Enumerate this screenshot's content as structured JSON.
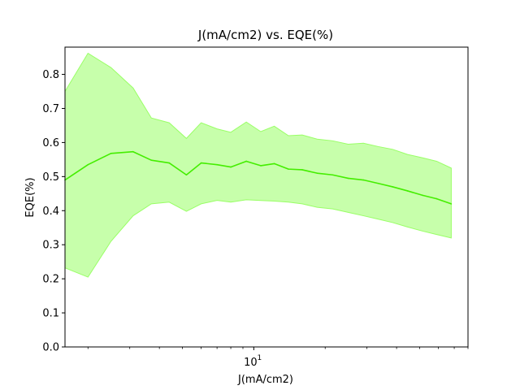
{
  "chart_data": {
    "type": "line",
    "title": "J(mA/cm2) vs. EQE(%)",
    "xlabel": "J(mA/cm2)",
    "ylabel": "EQE(%)",
    "x_scale": "log",
    "xlim": [
      1.6,
      80
    ],
    "ylim": [
      0,
      0.88
    ],
    "grid": false,
    "legend": "none",
    "x_tick_labels": [
      {
        "value": 10,
        "base": "10",
        "exp": "1"
      }
    ],
    "y_ticks": [
      "0.0",
      "0.1",
      "0.2",
      "0.3",
      "0.4",
      "0.5",
      "0.6",
      "0.7",
      "0.8"
    ],
    "series": [
      {
        "line_color": "#44ee00",
        "band_color": "#99ff66",
        "x": [
          1.6,
          2.0,
          2.5,
          3.1,
          3.7,
          4.4,
          5.2,
          6.0,
          7.0,
          8.0,
          9.3,
          10.7,
          12.2,
          14.0,
          16.0,
          18.5,
          21.5,
          25.0,
          29.0,
          33.5,
          38.5,
          44.5,
          51.5,
          59.0,
          68.0
        ],
        "y": [
          0.49,
          0.535,
          0.568,
          0.573,
          0.548,
          0.54,
          0.505,
          0.54,
          0.535,
          0.528,
          0.545,
          0.532,
          0.538,
          0.522,
          0.52,
          0.51,
          0.505,
          0.495,
          0.49,
          0.48,
          0.47,
          0.458,
          0.445,
          0.435,
          0.42
        ],
        "upper": [
          0.75,
          0.862,
          0.82,
          0.76,
          0.672,
          0.658,
          0.612,
          0.658,
          0.64,
          0.63,
          0.66,
          0.632,
          0.648,
          0.62,
          0.622,
          0.61,
          0.605,
          0.595,
          0.598,
          0.588,
          0.58,
          0.565,
          0.555,
          0.545,
          0.525
        ],
        "lower": [
          0.232,
          0.205,
          0.31,
          0.385,
          0.42,
          0.425,
          0.398,
          0.42,
          0.43,
          0.425,
          0.432,
          0.43,
          0.428,
          0.425,
          0.42,
          0.41,
          0.405,
          0.395,
          0.385,
          0.375,
          0.365,
          0.352,
          0.34,
          0.33,
          0.32
        ]
      }
    ]
  }
}
